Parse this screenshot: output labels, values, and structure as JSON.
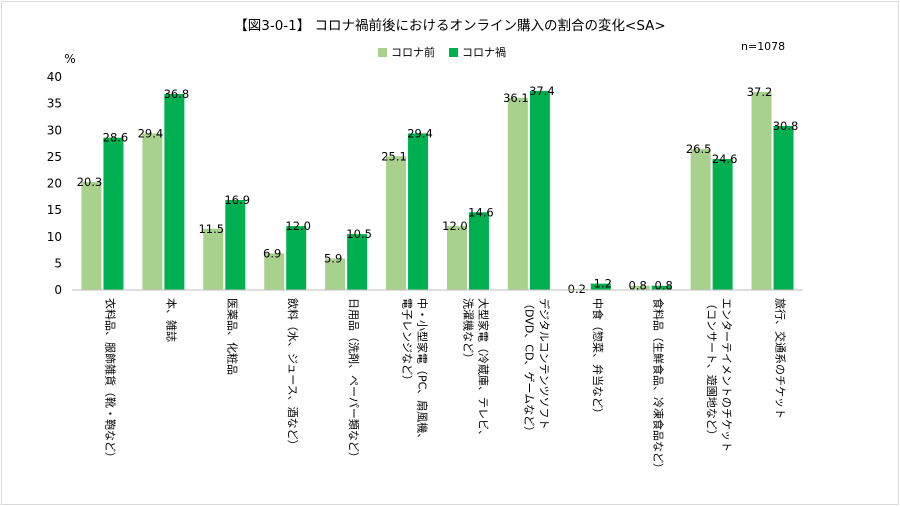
{
  "chart_data": {
    "type": "bar",
    "title": "【図3-0-1】 コロナ禍前後におけるオンライン購入の割合の変化<SA>",
    "note": "n=1078",
    "ylabel": "%",
    "ylim": [
      0,
      40
    ],
    "yticks": [
      0,
      5,
      10,
      15,
      20,
      25,
      30,
      35,
      40
    ],
    "grid": false,
    "legend_position": "top-center",
    "categories": [
      [
        "衣料品、服飾雑貨（靴・鞄など）"
      ],
      [
        "本、雑誌"
      ],
      [
        "医薬品、化粧品"
      ],
      [
        "飲料（水、ジュース、酒など）"
      ],
      [
        "日用品（洗剤、ペーパー類など）"
      ],
      [
        "中・小型家電（PC、扇風機、",
        "電子レンジなど）"
      ],
      [
        "大型家電（冷蔵庫、テレビ、",
        "洗濯機など）"
      ],
      [
        "デジタルコンテンツソフト",
        "（DVD、CD、ゲームなど）"
      ],
      [
        "中食（惣菜、弁当など）"
      ],
      [
        "食料品（生鮮食品、冷凍食品など）"
      ],
      [
        "エンターテイメントのチケット",
        "（コンサート、遊園地など）"
      ],
      [
        "旅行、交通系のチケット"
      ]
    ],
    "series": [
      {
        "name": "コロナ前",
        "color": "#a9d18e",
        "values": [
          20.3,
          29.4,
          11.5,
          6.9,
          5.9,
          25.1,
          12.0,
          36.1,
          0.2,
          0.8,
          26.5,
          37.2
        ]
      },
      {
        "name": "コロナ禍",
        "color": "#00b050",
        "values": [
          28.6,
          36.8,
          16.9,
          12.0,
          10.5,
          29.4,
          14.6,
          37.4,
          1.2,
          0.8,
          24.6,
          30.8
        ]
      }
    ]
  }
}
